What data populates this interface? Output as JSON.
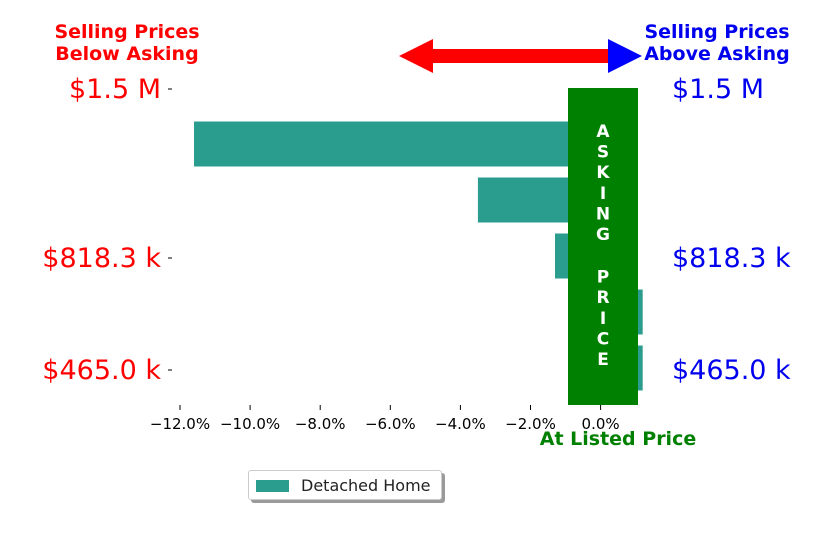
{
  "chart_data": {
    "type": "bar",
    "orientation": "horizontal",
    "series": [
      {
        "name": "Detached Home",
        "color": "#2a9d8f",
        "values": [
          -11.6,
          -3.5,
          -1.3,
          1.2,
          1.2
        ]
      }
    ],
    "x_ticks": [
      -12.0,
      -10.0,
      -8.0,
      -6.0,
      -4.0,
      -2.0,
      0.0
    ],
    "x_tick_labels": [
      "−12.0%",
      "−10.0%",
      "−8.0%",
      "−6.0%",
      "−4.0%",
      "−2.0%",
      "0.0%"
    ],
    "xlim": [
      -12.6,
      1.3
    ],
    "left_labels": {
      "title": "Selling Prices\nBelow Asking",
      "ticks": [
        "$1.5 M",
        "$818.3 k",
        "$465.0 k"
      ],
      "color": "#ff0000"
    },
    "right_labels": {
      "title": "Selling Prices\nAbove Asking",
      "ticks": [
        "$1.5 M",
        "$818.3 k",
        "$465.0 k"
      ],
      "color": "#0000ee"
    },
    "asking_price_band": {
      "text": "ASKING PRICE",
      "color": "#008000",
      "caption": "At Listed Price",
      "from": -1.0,
      "to": 1.0
    },
    "arrow": {
      "left_color": "#ff0000",
      "right_color": "#0000ff"
    },
    "legend": {
      "label": "Detached Home",
      "placement": "lower-center"
    }
  }
}
